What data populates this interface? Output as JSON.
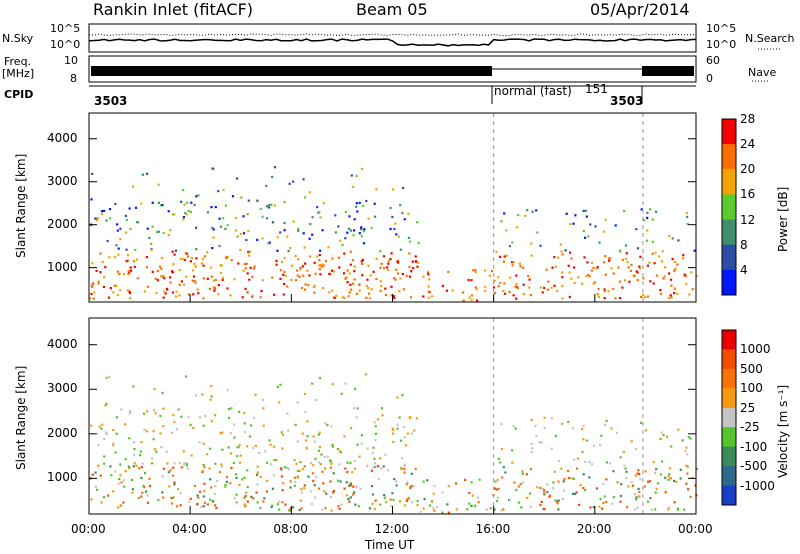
{
  "header": {
    "station": "Rankin Inlet (fitACF)",
    "beam": "Beam 05",
    "date": "05/Apr/2014"
  },
  "top_panels": {
    "nsky_label": "N.Sky",
    "nsky_ticks": [
      "10^5",
      "10^0"
    ],
    "nsearch_label": "N.Search",
    "nsearch_ticks": [
      "10^5",
      "10^0"
    ],
    "freq_label_1": "Freq.",
    "freq_label_2": "[MHz]",
    "freq_ticks": [
      "10",
      "8"
    ],
    "nave_label": "Nave",
    "nave_ticks": [
      "60",
      "0"
    ],
    "cpid_label": "CPID",
    "cpid_segments": [
      "3503",
      "normal (fast)",
      "151",
      "3503"
    ]
  },
  "chart_data": [
    {
      "type": "heatmap",
      "title": "",
      "xlabel": "",
      "ylabel": "Slant Range [km]",
      "xlim": [
        0,
        24
      ],
      "ylim": [
        200,
        4600
      ],
      "yticks": [
        1000,
        2000,
        3000,
        4000
      ],
      "colorbar": {
        "label": "Power [dB]",
        "ticks": [
          4,
          8,
          12,
          16,
          20,
          24,
          28
        ],
        "colors": [
          "#0016ff",
          "#2c4ea4",
          "#3f8e6d",
          "#5bcb2e",
          "#f5a300",
          "#fb6f00",
          "#f30000"
        ]
      }
    },
    {
      "type": "heatmap",
      "title": "",
      "xlabel": "Time UT",
      "ylabel": "Slant Range [km]",
      "xlim": [
        0,
        24
      ],
      "ylim": [
        200,
        4600
      ],
      "yticks": [
        1000,
        2000,
        3000,
        4000
      ],
      "xticks": [
        "00:00",
        "04:00",
        "08:00",
        "12:00",
        "16:00",
        "20:00",
        "00:00"
      ],
      "colorbar": {
        "label": "Velocity [m s⁻¹]",
        "ticks": [
          "1000",
          "500",
          "100",
          "25",
          "-25",
          "-100",
          "-500",
          "-1000"
        ],
        "colors": [
          "#1a3fc7",
          "#2d6a8e",
          "#3a8c5a",
          "#53c52e",
          "#c4c4c4",
          "#f59a12",
          "#f87408",
          "#f34d00",
          "#ea0000"
        ]
      }
    }
  ]
}
